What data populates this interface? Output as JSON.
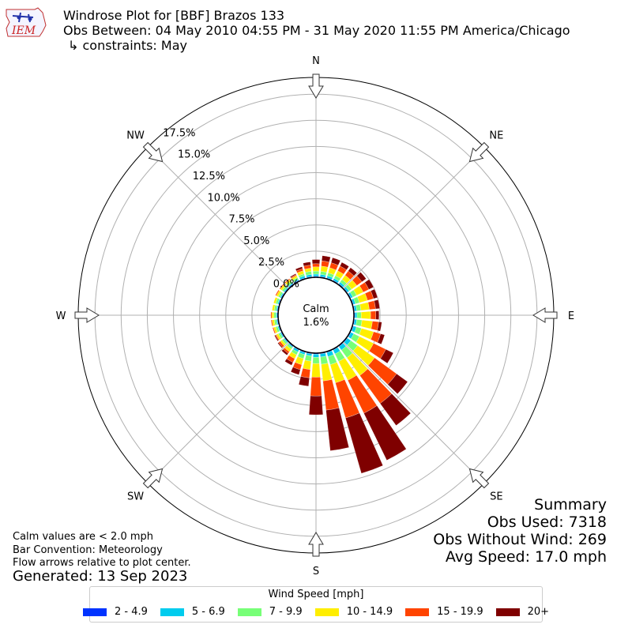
{
  "header": {
    "logo_text": "IEM",
    "title": "Windrose Plot for [BBF] Brazos 133",
    "subtitle": "Obs Between: 04 May 2010 04:55 PM - 31 May 2020 11:55 PM America/Chicago",
    "constraints": "↳ constraints: May"
  },
  "calm": {
    "label": "Calm",
    "value": "1.6%"
  },
  "notes": {
    "line1": "Calm values are < 2.0 mph",
    "line2": "Bar Convention: Meteorology",
    "line3": "Flow arrows relative to plot center.",
    "generated": "Generated: 13 Sep 2023"
  },
  "summary": {
    "title": "Summary",
    "obs_used": "Obs Used: 7318",
    "obs_without_wind": "Obs Without Wind: 269",
    "avg_speed": "Avg Speed: 17.0 mph"
  },
  "colors": {
    "grid": "#b0b0b0",
    "calm_circle": "#000000",
    "arrow_fill": "#ffffff",
    "arrow_stroke": "#333333"
  },
  "chart_data": {
    "type": "windrose",
    "title": "Windrose Plot for [BBF] Brazos 133",
    "compass_labels": [
      "N",
      "NE",
      "E",
      "SE",
      "S",
      "SW",
      "W",
      "NW"
    ],
    "radial_ticks": [
      "0.0%",
      "2.5%",
      "5.0%",
      "7.5%",
      "10.0%",
      "12.5%",
      "15.0%",
      "17.5%"
    ],
    "radial_tick_values": [
      0,
      2.5,
      5,
      7.5,
      10,
      12.5,
      15,
      17.5
    ],
    "rmax": 19.1,
    "calm_percent": 1.6,
    "legend_title": "Wind Speed [mph]",
    "bins": [
      {
        "name": "2 - 4.9",
        "color": "#0033ff"
      },
      {
        "name": "5 - 6.9",
        "color": "#00ccee"
      },
      {
        "name": "7 - 9.9",
        "color": "#77ff77"
      },
      {
        "name": "10 - 14.9",
        "color": "#ffee00"
      },
      {
        "name": "15 - 19.9",
        "color": "#ff4400"
      },
      {
        "name": "20+",
        "color": "#7f0000"
      }
    ],
    "directions_deg": [
      0,
      10,
      20,
      30,
      40,
      50,
      60,
      70,
      80,
      90,
      100,
      110,
      120,
      130,
      140,
      150,
      160,
      170,
      180,
      190,
      200,
      210,
      220,
      230,
      240,
      250,
      260,
      270,
      280,
      290,
      300,
      310,
      320,
      330,
      340,
      350
    ],
    "segments": [
      [
        0.1,
        0.2,
        0.3,
        0.4,
        0.3,
        0.4
      ],
      [
        0.1,
        0.2,
        0.3,
        0.5,
        0.5,
        0.5
      ],
      [
        0.1,
        0.2,
        0.3,
        0.5,
        0.5,
        0.5
      ],
      [
        0.1,
        0.2,
        0.3,
        0.5,
        0.5,
        0.4
      ],
      [
        0.1,
        0.2,
        0.3,
        0.5,
        0.5,
        0.4
      ],
      [
        0.1,
        0.2,
        0.3,
        0.6,
        0.6,
        0.5
      ],
      [
        0.1,
        0.2,
        0.4,
        0.7,
        0.6,
        0.5
      ],
      [
        0.1,
        0.2,
        0.4,
        0.8,
        0.6,
        0.4
      ],
      [
        0.1,
        0.2,
        0.4,
        0.8,
        0.6,
        0.4
      ],
      [
        0.1,
        0.2,
        0.4,
        0.9,
        0.5,
        0.3
      ],
      [
        0.1,
        0.2,
        0.5,
        1.0,
        0.6,
        0.3
      ],
      [
        0.1,
        0.3,
        0.5,
        1.2,
        0.7,
        0.4
      ],
      [
        0.1,
        0.3,
        0.6,
        1.5,
        1.3,
        0.8
      ],
      [
        0.1,
        0.4,
        0.8,
        2.0,
        2.6,
        1.3
      ],
      [
        0.1,
        0.4,
        0.9,
        2.1,
        3.3,
        2.6
      ],
      [
        0.1,
        0.4,
        0.8,
        2.0,
        3.5,
        5.0
      ],
      [
        0.1,
        0.4,
        0.8,
        1.8,
        3.5,
        5.5
      ],
      [
        0.1,
        0.3,
        0.7,
        1.6,
        2.8,
        3.9
      ],
      [
        0.1,
        0.3,
        0.6,
        1.3,
        1.8,
        1.8
      ],
      [
        0.1,
        0.2,
        0.5,
        0.8,
        0.8,
        0.8
      ],
      [
        0.1,
        0.2,
        0.4,
        0.6,
        0.5,
        0.5
      ],
      [
        0.1,
        0.2,
        0.3,
        0.4,
        0.4,
        0.3
      ],
      [
        0.1,
        0.1,
        0.2,
        0.3,
        0.2,
        0.2
      ],
      [
        0.1,
        0.1,
        0.2,
        0.2,
        0.2,
        0.1
      ],
      [
        0.1,
        0.1,
        0.2,
        0.2,
        0.1,
        0.1
      ],
      [
        0.1,
        0.1,
        0.2,
        0.2,
        0.1,
        0.0
      ],
      [
        0.1,
        0.1,
        0.2,
        0.2,
        0.1,
        0.0
      ],
      [
        0.1,
        0.1,
        0.2,
        0.2,
        0.1,
        0.0
      ],
      [
        0.1,
        0.1,
        0.2,
        0.2,
        0.0,
        0.0
      ],
      [
        0.1,
        0.1,
        0.2,
        0.2,
        0.0,
        0.0
      ],
      [
        0.1,
        0.1,
        0.2,
        0.2,
        0.1,
        0.0
      ],
      [
        0.1,
        0.1,
        0.2,
        0.2,
        0.1,
        0.0
      ],
      [
        0.1,
        0.1,
        0.2,
        0.2,
        0.1,
        0.0
      ],
      [
        0.1,
        0.1,
        0.2,
        0.2,
        0.1,
        0.1
      ],
      [
        0.1,
        0.2,
        0.2,
        0.3,
        0.2,
        0.2
      ],
      [
        0.1,
        0.2,
        0.3,
        0.3,
        0.3,
        0.3
      ]
    ]
  }
}
